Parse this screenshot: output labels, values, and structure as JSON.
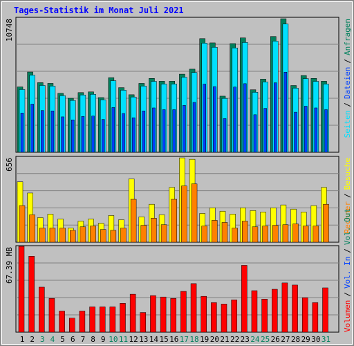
{
  "title": "Tages-Statistik im Monat Juli 2021",
  "categories": [
    "1",
    "2",
    "3",
    "4",
    "5",
    "6",
    "7",
    "8",
    "9",
    "10",
    "11",
    "12",
    "13",
    "14",
    "15",
    "16",
    "17",
    "18",
    "19",
    "20",
    "21",
    "22",
    "23",
    "24",
    "25",
    "26",
    "27",
    "28",
    "29",
    "30",
    "31"
  ],
  "category_colors": [
    "#000000",
    "#000000",
    "#00805c",
    "#00805c",
    "#000000",
    "#000000",
    "#000000",
    "#000000",
    "#000000",
    "#00805c",
    "#00805c",
    "#000000",
    "#000000",
    "#000000",
    "#000000",
    "#000000",
    "#00805c",
    "#00805c",
    "#000000",
    "#000000",
    "#000000",
    "#000000",
    "#000000",
    "#00805c",
    "#00805c",
    "#000000",
    "#000000",
    "#000000",
    "#000000",
    "#000000",
    "#00805c"
  ],
  "legend_separator": "/",
  "grid": true,
  "chart_data": [
    {
      "type": "bar",
      "ylim": [
        0,
        10748
      ],
      "yticks": [
        10748
      ],
      "legend_anchor": "top",
      "series": [
        {
          "name": "Anfragen",
          "color": "#00805c",
          "values": [
            5204,
            6392,
            5544,
            5487,
            4695,
            4299,
            4752,
            4808,
            4356,
            5940,
            5148,
            4582,
            5487,
            5883,
            5657,
            5657,
            6223,
            6619,
            9051,
            8712,
            4469,
            8655,
            9108,
            4978,
            5827,
            9221,
            10635,
            5318,
            6110,
            5883,
            5657
          ]
        },
        {
          "name": "Dateien",
          "color": "#0040ff",
          "values": [
            3122,
            3835,
            3326,
            3292,
            2817,
            2579,
            2851,
            2885,
            2614,
            3564,
            3089,
            2749,
            3292,
            3530,
            3394,
            3394,
            3734,
            3971,
            5431,
            5227,
            2681,
            5193,
            5465,
            2987,
            3496,
            5533,
            6381,
            3191,
            3666,
            3530,
            3394
          ]
        },
        {
          "name": "Seiten",
          "color": "#00e0ff",
          "values": [
            4996,
            6136,
            5322,
            5268,
            4507,
            4127,
            4562,
            4616,
            4182,
            5702,
            4942,
            4399,
            5268,
            5648,
            5431,
            5431,
            5974,
            6354,
            8689,
            8364,
            4290,
            8309,
            8744,
            4779,
            5594,
            8852,
            10210,
            5105,
            5866,
            5648,
            5431
          ]
        }
      ]
    },
    {
      "type": "bar",
      "ylim": [
        0,
        656
      ],
      "yticks": [
        656
      ],
      "legend_anchor": "top",
      "series": [
        {
          "name": "Besuche",
          "color": "#ffff00",
          "values": [
            462,
            376,
            188,
            215,
            177,
            108,
            161,
            177,
            145,
            204,
            172,
            484,
            194,
            290,
            210,
            419,
            645,
            634,
            220,
            263,
            237,
            215,
            263,
            242,
            231,
            263,
            285,
            253,
            231,
            280,
            419
          ]
        },
        {
          "name": "Rechner",
          "color": "#ff8000",
          "values": [
            280,
            210,
            108,
            108,
            108,
            91,
            118,
            124,
            97,
            91,
            108,
            328,
            129,
            183,
            134,
            328,
            430,
            446,
            124,
            167,
            151,
            108,
            161,
            118,
            124,
            129,
            134,
            140,
            124,
            124,
            290
          ]
        }
      ]
    },
    {
      "type": "bar",
      "ylim": [
        0,
        67.39
      ],
      "yticks": [
        {
          "value": 67.39,
          "label": "67.39 MB"
        }
      ],
      "legend_anchor": "bottom",
      "series": [
        {
          "name": "Volumen",
          "color": "#ff0000",
          "values": [
            66.84,
            59.17,
            35.07,
            26.3,
            16.44,
            10.96,
            16.44,
            19.72,
            19.72,
            19.72,
            22.46,
            29.59,
            15.34,
            28.49,
            27.4,
            26.3,
            31.78,
            37.81,
            27.94,
            23.01,
            21.92,
            25.2,
            52.05,
            32.33,
            25.75,
            33.42,
            38.35,
            36.71,
            26.85,
            23.01,
            34.52
          ]
        },
        {
          "name": "Vol. In",
          "color": "#0040ff"
        },
        {
          "name": "Vol. Out",
          "color": "#00805c"
        }
      ]
    }
  ]
}
